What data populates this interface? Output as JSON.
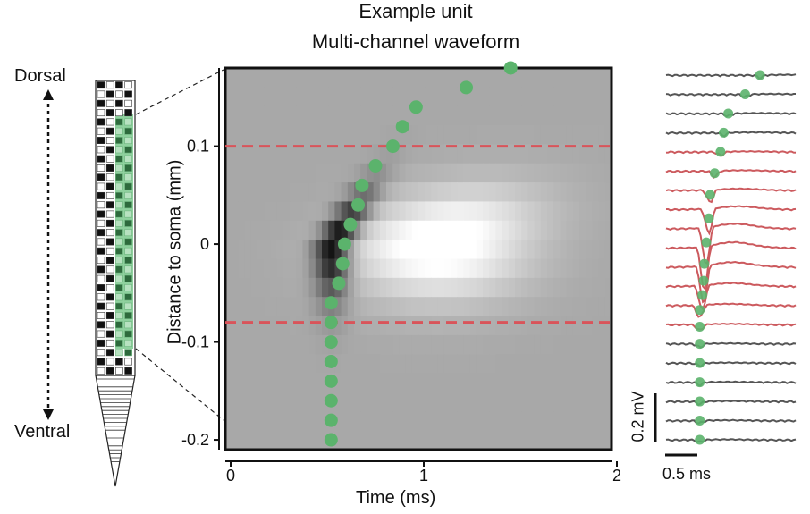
{
  "title": "Example unit",
  "subtitle": "Multi-channel waveform",
  "probe": {
    "top_label": "Dorsal",
    "bottom_label": "Ventral"
  },
  "scalebar": {
    "vertical": "0.2 mV",
    "horizontal": "0.5 ms"
  },
  "colors": {
    "accent_dot": "#5bb36c",
    "soma_band_trace": "#cc5a5e",
    "other_trace": "#555555",
    "dashed_line": "#d9545a",
    "probe_highlight": "#8fd19e"
  },
  "chart_data": {
    "type": "heatmap",
    "xlabel": "Time (ms)",
    "ylabel": "Distance to soma (mm)",
    "xlim": [
      0,
      2
    ],
    "ylim": [
      -0.21,
      0.18
    ],
    "xticks": [
      "0",
      "1",
      "2"
    ],
    "yticks": [
      "-0.2",
      "-0.1",
      "0",
      "0.1"
    ],
    "dashed_lines_y": [
      0.1,
      -0.08
    ],
    "peak_points": [
      {
        "t": 0.52,
        "d": -0.2
      },
      {
        "t": 0.52,
        "d": -0.18
      },
      {
        "t": 0.52,
        "d": -0.16
      },
      {
        "t": 0.52,
        "d": -0.14
      },
      {
        "t": 0.52,
        "d": -0.12
      },
      {
        "t": 0.52,
        "d": -0.1
      },
      {
        "t": 0.52,
        "d": -0.08
      },
      {
        "t": 0.52,
        "d": -0.06
      },
      {
        "t": 0.56,
        "d": -0.04
      },
      {
        "t": 0.58,
        "d": -0.02
      },
      {
        "t": 0.59,
        "d": 0.0
      },
      {
        "t": 0.62,
        "d": 0.02
      },
      {
        "t": 0.66,
        "d": 0.04
      },
      {
        "t": 0.68,
        "d": 0.06
      },
      {
        "t": 0.75,
        "d": 0.08
      },
      {
        "t": 0.84,
        "d": 0.1
      },
      {
        "t": 0.89,
        "d": 0.12
      },
      {
        "t": 0.96,
        "d": 0.14
      },
      {
        "t": 1.22,
        "d": 0.16
      },
      {
        "t": 1.45,
        "d": 0.18
      }
    ]
  }
}
